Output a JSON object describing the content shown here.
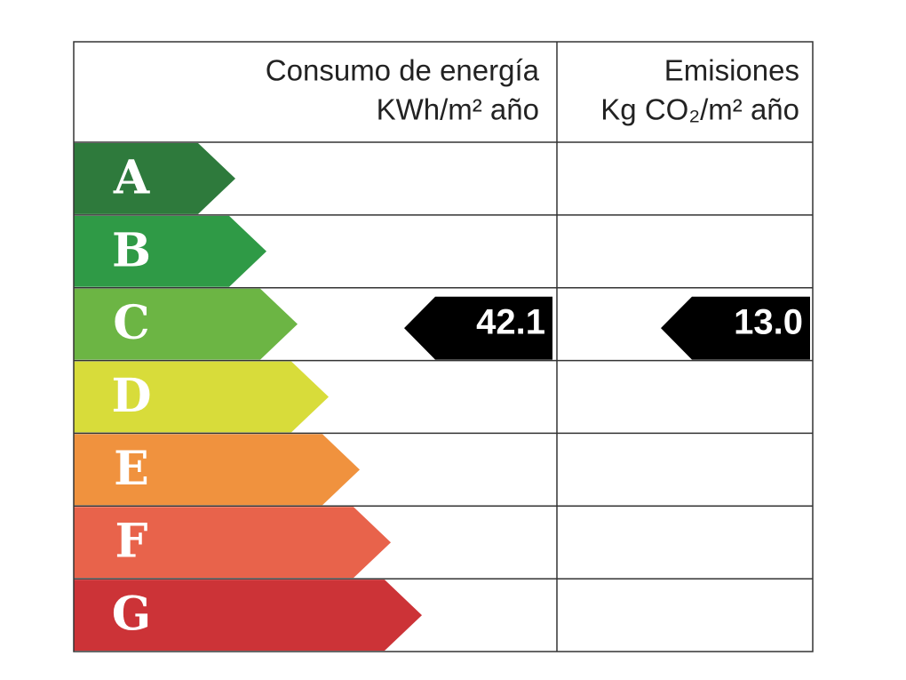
{
  "header": {
    "consumption": [
      "Consumo de energía",
      "KWh/m² año"
    ],
    "emissions": [
      "Emisiones",
      "Kg CO₂/m² año"
    ]
  },
  "ratings": [
    {
      "letter": "A",
      "color": "#2e7a3c"
    },
    {
      "letter": "B",
      "color": "#2f9a46"
    },
    {
      "letter": "C",
      "color": "#6cb544"
    },
    {
      "letter": "D",
      "color": "#d8dc3a"
    },
    {
      "letter": "E",
      "color": "#f0923e"
    },
    {
      "letter": "F",
      "color": "#e8634b"
    },
    {
      "letter": "G",
      "color": "#cc3337"
    }
  ],
  "indicators": {
    "consumption": "42.1",
    "emissions": "13.0"
  }
}
